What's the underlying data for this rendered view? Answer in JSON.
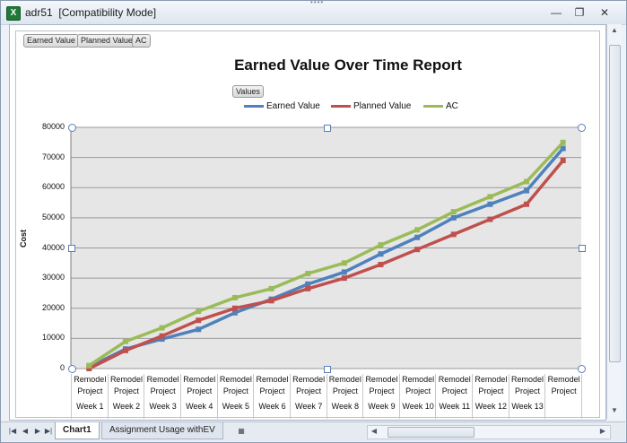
{
  "window": {
    "title": "adr51  [Compatibility Mode]",
    "icon": "excel-icon",
    "controls": [
      "minimize-icon",
      "restore-icon",
      "close-icon"
    ]
  },
  "field_buttons": [
    "Earned Value",
    "Planned Value",
    "AC"
  ],
  "values_button": "Values",
  "chart_data": {
    "type": "line",
    "title": "Earned Value Over Time Report",
    "xlabel": "",
    "ylabel": "Cost",
    "ylim": [
      0,
      80000
    ],
    "yticks": [
      "80000",
      "70000",
      "60000",
      "50000",
      "40000",
      "30000",
      "20000",
      "10000",
      "0"
    ],
    "categories": [
      [
        "Remodel",
        "Project",
        "Week 1"
      ],
      [
        "Remodel",
        "Project",
        "Week 2"
      ],
      [
        "Remodel",
        "Project",
        "Week 3"
      ],
      [
        "Remodel",
        "Project",
        "Week 4"
      ],
      [
        "Remodel",
        "Project",
        "Week 5"
      ],
      [
        "Remodel",
        "Project",
        "Week 6"
      ],
      [
        "Remodel",
        "Project",
        "Week 7"
      ],
      [
        "Remodel",
        "Project",
        "Week 8"
      ],
      [
        "Remodel",
        "Project",
        "Week 9"
      ],
      [
        "Remodel",
        "Project",
        "Week 10"
      ],
      [
        "Remodel",
        "Project",
        "Week 11"
      ],
      [
        "Remodel",
        "Project",
        "Week 12"
      ],
      [
        "Remodel",
        "Project",
        "Week 13"
      ],
      [
        "Remodel",
        "Project",
        ""
      ]
    ],
    "legend_position": "top",
    "grid": true,
    "series": [
      {
        "name": "Earned Value",
        "color": "#4f81bd",
        "values": [
          500,
          6500,
          9800,
          13000,
          18500,
          23000,
          28000,
          32000,
          38000,
          43500,
          50000,
          54500,
          59000,
          73000
        ]
      },
      {
        "name": "Planned Value",
        "color": "#c0504d",
        "values": [
          0,
          6000,
          10800,
          16000,
          20000,
          22500,
          26500,
          30000,
          34500,
          39500,
          44500,
          49500,
          54500,
          69000
        ]
      },
      {
        "name": "AC",
        "color": "#9bbb59",
        "values": [
          1000,
          9000,
          13500,
          19000,
          23500,
          26500,
          31500,
          35000,
          41000,
          46000,
          52000,
          57000,
          62000,
          75000
        ]
      }
    ]
  },
  "tabs": {
    "active": "Chart1",
    "inactive": "Assignment Usage withEV"
  }
}
